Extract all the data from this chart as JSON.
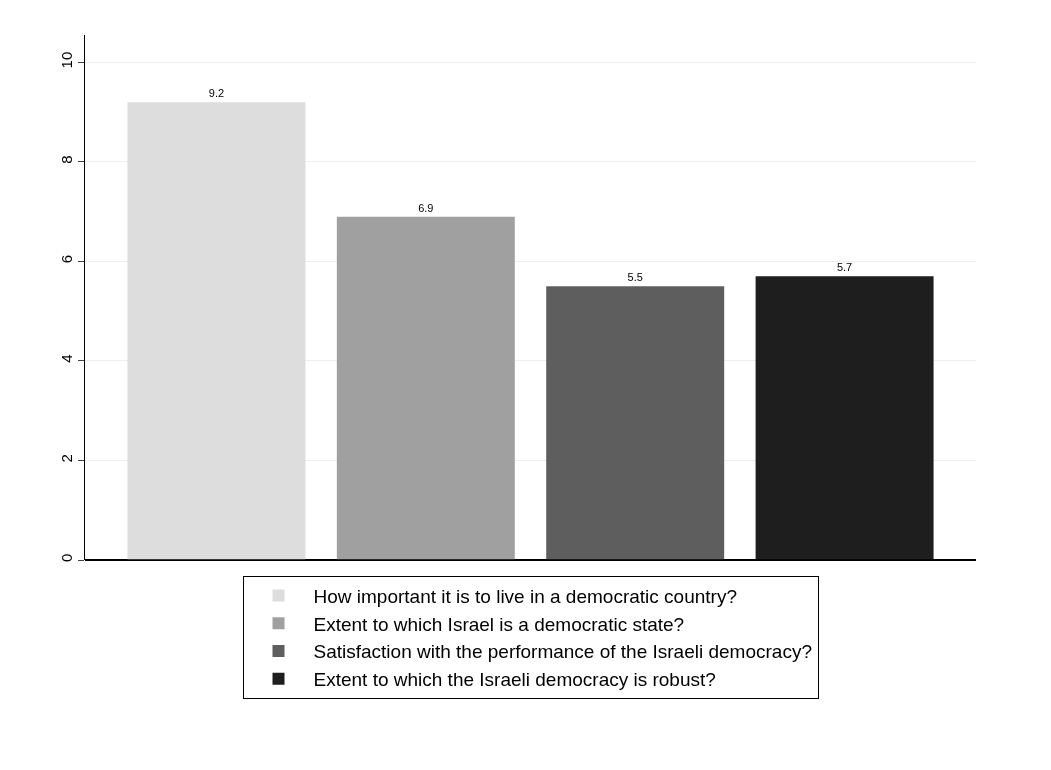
{
  "chart_data": {
    "type": "bar",
    "categories": [
      null
    ],
    "series": [
      {
        "name": "How important it is to live in a democratic country?",
        "color": "#dddddd",
        "values": [
          9.2
        ]
      },
      {
        "name": "Extent to which Israel is a democratic state?",
        "color": "#a0a0a0",
        "values": [
          6.9
        ]
      },
      {
        "name": "Satisfaction with the performance of the Israeli democracy?",
        "color": "#5e5e5e",
        "values": [
          5.5
        ]
      },
      {
        "name": "Extent to which the Israeli democracy is robust?",
        "color": "#1e1e1e",
        "values": [
          5.7
        ]
      }
    ],
    "ylim": [
      0,
      10.55
    ],
    "yticks": [
      0,
      2,
      4,
      6,
      8,
      10
    ],
    "grid": "y",
    "legend": "bottom",
    "data_labels": true
  }
}
